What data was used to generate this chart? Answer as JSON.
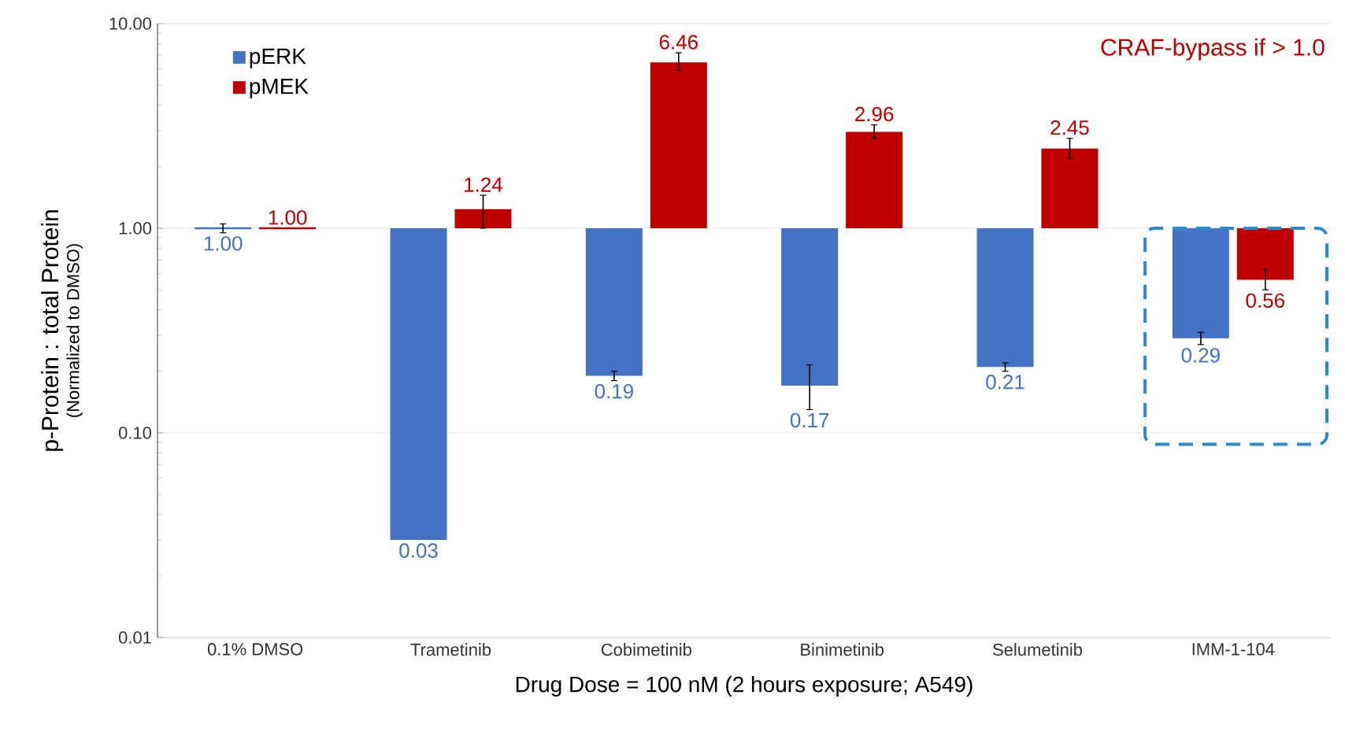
{
  "chart_data": {
    "type": "bar",
    "xlabel": "Drug Dose = 100 nM (2 hours exposure; A549)",
    "ylabel": "p-Protein : total Protein",
    "annotations": [
      "(Normalized to DMSO)",
      "CRAF-bypass if > 1.0"
    ],
    "categories": [
      "0.1% DMSO",
      "Trametinib",
      "Cobimetinib",
      "Binimetinib",
      "Selumetinib",
      "IMM-1-104"
    ],
    "series": [
      {
        "name": "pERK",
        "color": "#4472c4",
        "base": [
          1,
          1,
          1,
          1,
          1,
          1
        ],
        "values": [
          0,
          -0.97,
          -0.81,
          -0.83,
          -0.79,
          -0.71
        ],
        "value_labels": [
          "1.00",
          "0.03",
          "0.19",
          "0.17",
          "0.21",
          "0.29"
        ],
        "errors": [
          [
            0.95,
            1.05
          ],
          null,
          [
            0.18,
            0.2
          ],
          [
            0.13,
            0.215
          ],
          [
            0.2,
            0.22
          ],
          [
            0.27,
            0.31
          ]
        ]
      },
      {
        "name": "pMEK",
        "color": "#c00000",
        "base": [
          1,
          1,
          1,
          1,
          1,
          1
        ],
        "values": [
          0,
          0.24,
          5.46,
          1.96,
          1.45,
          -0.44
        ],
        "value_labels": [
          "1.00",
          "1.24",
          "6.46",
          "2.96",
          "2.45",
          "0.56"
        ],
        "errors": [
          null,
          [
            1.0,
            1.45
          ],
          [
            5.9,
            7.2
          ],
          [
            2.75,
            3.2
          ],
          [
            2.2,
            2.75
          ],
          [
            0.5,
            0.63
          ]
        ]
      }
    ],
    "log": "y",
    "ylim": [
      0.01,
      10
    ],
    "yticks": [
      {
        "value": 0.01,
        "label": "0.01"
      },
      {
        "value": 0.1,
        "label": "0.10"
      },
      {
        "value": 1,
        "label": "1.00"
      },
      {
        "value": 10,
        "label": "10.00"
      }
    ],
    "grid": "y",
    "legend": "top left"
  }
}
